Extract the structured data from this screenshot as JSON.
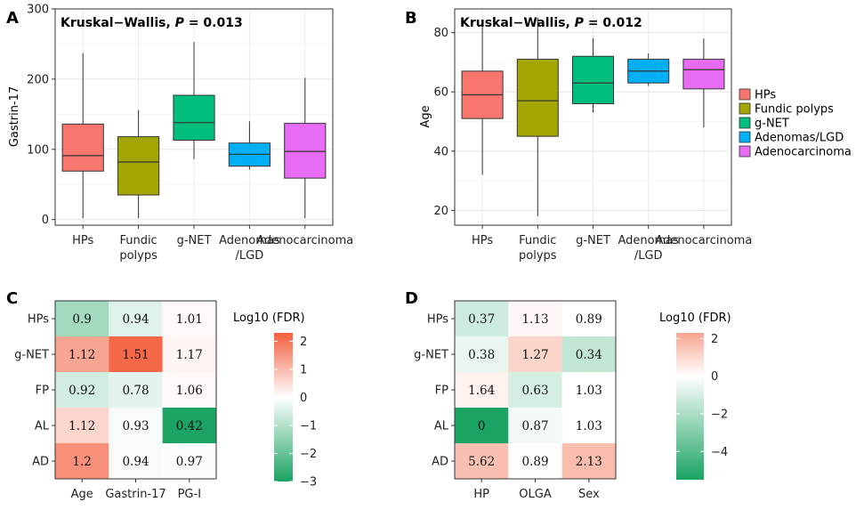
{
  "panels": {
    "A": "A",
    "B": "B",
    "C": "C",
    "D": "D"
  },
  "chart_data": [
    {
      "type": "box",
      "panel": "A",
      "title_prefix": "Kruskal−Wallis, ",
      "title_p": "P",
      "title_suffix": " = 0.013",
      "ylabel": "Gastrin-17",
      "xlabel": "",
      "ylim": [
        -8,
        300
      ],
      "yticks": [
        0,
        100,
        200,
        300
      ],
      "grid": true,
      "categories": [
        [
          "HPs"
        ],
        [
          "Fundic",
          "polyps"
        ],
        [
          "g-NET"
        ],
        [
          "Adenomas",
          "/LGD"
        ],
        [
          "Adenocarcinoma"
        ]
      ],
      "colors": [
        "#F8766D",
        "#A3A500",
        "#00BF7D",
        "#00B0F6",
        "#E76BF3"
      ],
      "boxes": [
        {
          "whisker_low": 2,
          "q1": 69,
          "median": 91,
          "q3": 136,
          "whisker_high": 237
        },
        {
          "whisker_low": 2,
          "q1": 35,
          "median": 82,
          "q3": 118,
          "whisker_high": 156
        },
        {
          "whisker_low": 86,
          "q1": 113,
          "median": 138,
          "q3": 177,
          "whisker_high": 253
        },
        {
          "whisker_low": 71,
          "q1": 76,
          "median": 93,
          "q3": 109,
          "whisker_high": 140
        },
        {
          "whisker_low": 2,
          "q1": 59,
          "median": 97,
          "q3": 137,
          "whisker_high": 202
        }
      ]
    },
    {
      "type": "box",
      "panel": "B",
      "title_prefix": "Kruskal−Wallis, ",
      "title_p": "P",
      "title_suffix": " = 0.012",
      "ylabel": "Age",
      "xlabel": "",
      "ylim": [
        15,
        88
      ],
      "yticks": [
        20,
        40,
        60,
        80
      ],
      "grid": true,
      "categories": [
        [
          "HPs"
        ],
        [
          "Fundic",
          "polyps"
        ],
        [
          "g-NET"
        ],
        [
          "Adenomas",
          "/LGD"
        ],
        [
          "Adenocarcinoma"
        ]
      ],
      "colors": [
        "#F8766D",
        "#A3A500",
        "#00BF7D",
        "#00B0F6",
        "#E76BF3"
      ],
      "boxes": [
        {
          "whisker_low": 32,
          "q1": 51,
          "median": 59,
          "q3": 67,
          "whisker_high": 84
        },
        {
          "whisker_low": 18,
          "q1": 45,
          "median": 57,
          "q3": 71,
          "whisker_high": 85
        },
        {
          "whisker_low": 53,
          "q1": 56,
          "median": 63,
          "q3": 72,
          "whisker_high": 78
        },
        {
          "whisker_low": 62,
          "q1": 63,
          "median": 67,
          "q3": 71,
          "whisker_high": 73
        },
        {
          "whisker_low": 48,
          "q1": 61,
          "median": 67.5,
          "q3": 71,
          "whisker_high": 78
        }
      ],
      "legend": {
        "placement": "right",
        "entries": [
          "HPs",
          "Fundic polyps",
          "g-NET",
          "Adenomas/LGD",
          "Adenocarcinoma"
        ]
      }
    },
    {
      "type": "heatmap",
      "panel": "C",
      "rows": [
        "HPs",
        "g-NET",
        "FP",
        "AL",
        "AD"
      ],
      "columns": [
        "Age",
        "Gastrin-17",
        "PG-I"
      ],
      "values": [
        [
          0.9,
          0.94,
          1.01
        ],
        [
          1.12,
          1.51,
          1.17
        ],
        [
          0.92,
          0.78,
          1.06
        ],
        [
          1.12,
          0.93,
          0.42
        ],
        [
          1.2,
          0.94,
          0.97
        ]
      ],
      "color_values": [
        [
          -1.2,
          -0.4,
          0.1
        ],
        [
          1.3,
          2.2,
          0.15
        ],
        [
          -0.6,
          -0.35,
          0.1
        ],
        [
          0.6,
          -0.1,
          -3.0
        ],
        [
          1.6,
          -0.1,
          -0.05
        ]
      ],
      "legend": {
        "title": "Log10 (FDR)",
        "range": [
          -3,
          2.3
        ],
        "ticks": [
          2,
          1,
          0,
          -1,
          -2,
          -3
        ],
        "tick_labels": [
          "2",
          "1",
          "0",
          "−1",
          "−2",
          "−3"
        ],
        "low_color": "#1aa362",
        "mid_color": "#ffffff",
        "high_color": "#f3603f"
      }
    },
    {
      "type": "heatmap",
      "panel": "D",
      "rows": [
        "HPs",
        "g-NET",
        "FP",
        "AL",
        "AD"
      ],
      "columns": [
        "HP",
        "OLGA",
        "Sex"
      ],
      "values": [
        [
          0.37,
          1.13,
          0.89
        ],
        [
          0.38,
          1.27,
          0.34
        ],
        [
          1.64,
          0.63,
          1.03
        ],
        [
          0,
          0.87,
          1.03
        ],
        [
          5.62,
          0.89,
          2.13
        ]
      ],
      "color_values": [
        [
          -1.2,
          0.2,
          0.0
        ],
        [
          -0.5,
          1.1,
          -1.5
        ],
        [
          0.35,
          -1.0,
          0.0
        ],
        [
          -5.5,
          -0.3,
          0.0
        ],
        [
          1.6,
          0.05,
          1.7
        ]
      ],
      "legend": {
        "title": "Log10 (FDR)",
        "range": [
          -5.5,
          2.3
        ],
        "ticks": [
          2,
          0,
          -2,
          -4
        ],
        "tick_labels": [
          "2",
          "0",
          "−2",
          "−4"
        ],
        "low_color": "#1aa362",
        "mid_color": "#ffffff",
        "high_color": "#f7a590"
      }
    }
  ]
}
